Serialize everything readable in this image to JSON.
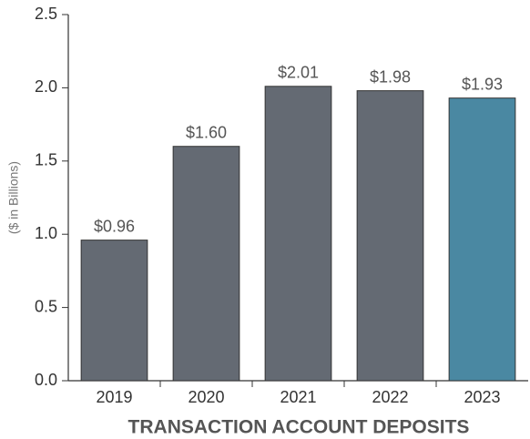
{
  "chart_data": {
    "type": "bar",
    "title": "TRANSACTION ACCOUNT DEPOSITS",
    "y_label": "($ in Billions)",
    "categories": [
      "2019",
      "2020",
      "2021",
      "2022",
      "2023"
    ],
    "values": [
      0.96,
      1.6,
      2.01,
      1.98,
      1.93
    ],
    "value_labels": [
      "$0.96",
      "$1.60",
      "$2.01",
      "$1.98",
      "$1.93"
    ],
    "colors": [
      "#646a73",
      "#646a73",
      "#646a73",
      "#646a73",
      "#4a88a2"
    ],
    "ylim": [
      0,
      2.5
    ],
    "yticks": [
      {
        "value": 0,
        "label": "0.0"
      },
      0.5,
      {
        "value": 1,
        "label": "1.0"
      },
      1.5,
      {
        "value": 2,
        "label": "2.0"
      },
      2.5
    ],
    "grid": false
  }
}
